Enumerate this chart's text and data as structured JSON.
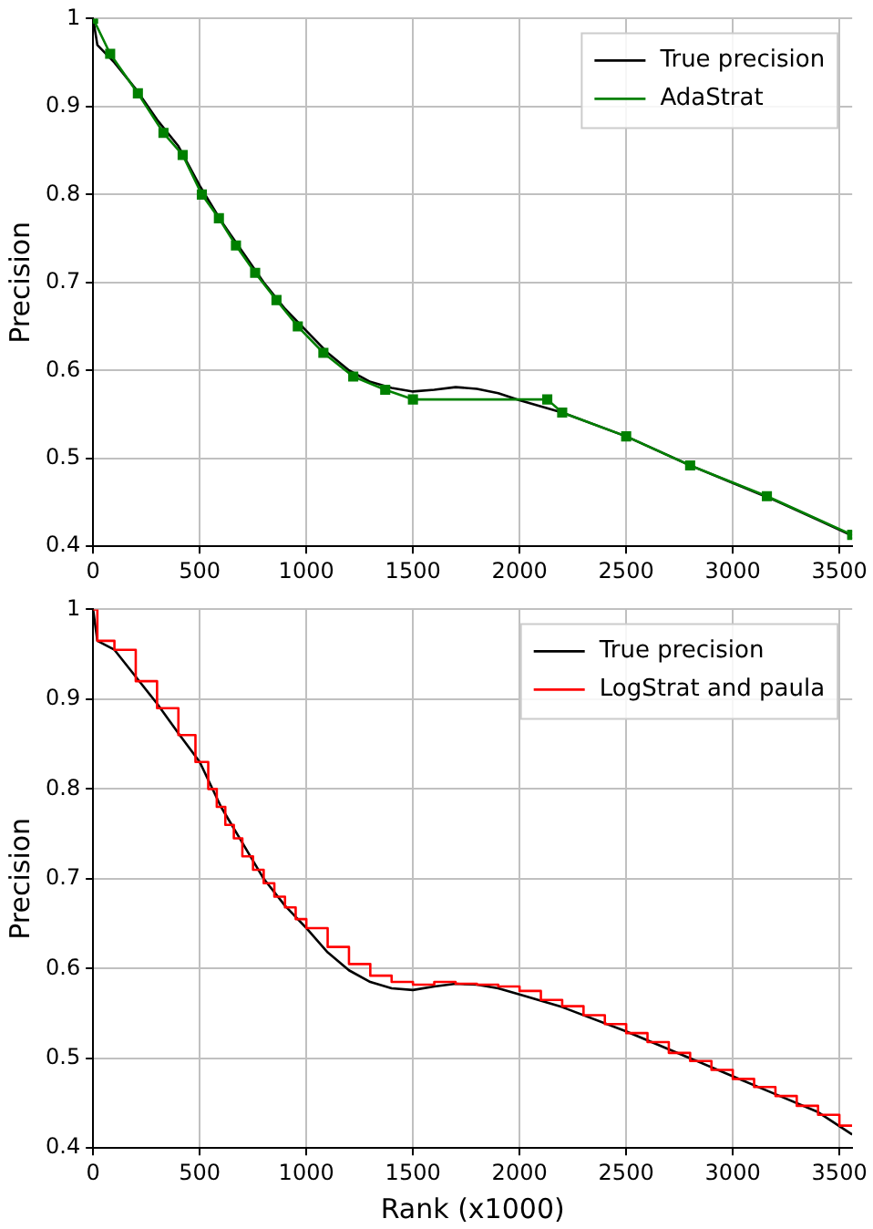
{
  "chart_data": [
    {
      "type": "line",
      "ylabel": "Precision",
      "xlim": [
        0,
        3560
      ],
      "ylim": [
        0.4,
        1.0
      ],
      "xticks": [
        0,
        500,
        1000,
        1500,
        2000,
        2500,
        3000,
        3500
      ],
      "yticks": [
        0.4,
        0.5,
        0.6,
        0.7,
        0.8,
        0.9,
        1.0
      ],
      "grid": true,
      "legend": "top right",
      "series": [
        {
          "name": "True precision",
          "type": "line",
          "color": "#000000",
          "x": [
            0,
            20,
            100,
            200,
            300,
            400,
            500,
            600,
            700,
            800,
            900,
            1000,
            1100,
            1200,
            1300,
            1400,
            1500,
            1600,
            1700,
            1800,
            1900,
            2000,
            2100,
            2200,
            2500,
            2800,
            3000,
            3200,
            3400,
            3560
          ],
          "values": [
            1.0,
            0.97,
            0.95,
            0.92,
            0.885,
            0.855,
            0.81,
            0.77,
            0.735,
            0.7,
            0.67,
            0.645,
            0.62,
            0.6,
            0.587,
            0.58,
            0.576,
            0.578,
            0.581,
            0.579,
            0.574,
            0.566,
            0.559,
            0.552,
            0.525,
            0.492,
            0.472,
            0.452,
            0.43,
            0.412
          ]
        },
        {
          "name": "AdaStrat",
          "type": "line",
          "marker": "square",
          "color": "#008000",
          "x": [
            0,
            80,
            210,
            330,
            420,
            510,
            590,
            670,
            760,
            860,
            960,
            1080,
            1220,
            1370,
            1500,
            2130,
            2200,
            2500,
            2800,
            3160,
            3560
          ],
          "values": [
            1.0,
            0.96,
            0.915,
            0.87,
            0.845,
            0.8,
            0.773,
            0.742,
            0.711,
            0.68,
            0.65,
            0.62,
            0.593,
            0.578,
            0.567,
            0.567,
            0.552,
            0.525,
            0.492,
            0.457,
            0.413
          ]
        }
      ]
    },
    {
      "type": "line",
      "xlabel": "Rank (x1000)",
      "ylabel": "Precision",
      "xlim": [
        0,
        3560
      ],
      "ylim": [
        0.4,
        1.0
      ],
      "xticks": [
        0,
        500,
        1000,
        1500,
        2000,
        2500,
        3000,
        3500
      ],
      "yticks": [
        0.4,
        0.5,
        0.6,
        0.7,
        0.8,
        0.9,
        1.0
      ],
      "grid": true,
      "legend": "top right",
      "series": [
        {
          "name": "True precision",
          "type": "line",
          "color": "#000000",
          "x": [
            0,
            20,
            100,
            200,
            300,
            400,
            500,
            600,
            700,
            800,
            900,
            1000,
            1100,
            1200,
            1300,
            1400,
            1500,
            1600,
            1700,
            1800,
            1900,
            2000,
            2200,
            2500,
            2800,
            3000,
            3200,
            3400,
            3560
          ],
          "values": [
            1.0,
            0.965,
            0.955,
            0.925,
            0.895,
            0.862,
            0.83,
            0.78,
            0.74,
            0.7,
            0.67,
            0.645,
            0.618,
            0.598,
            0.585,
            0.578,
            0.576,
            0.58,
            0.583,
            0.582,
            0.578,
            0.571,
            0.557,
            0.53,
            0.5,
            0.48,
            0.46,
            0.44,
            0.415
          ]
        },
        {
          "name": "LogStrat and paula",
          "type": "step",
          "color": "#ff0000",
          "x": [
            0,
            20,
            100,
            200,
            300,
            400,
            480,
            540,
            580,
            620,
            660,
            700,
            750,
            800,
            850,
            900,
            950,
            1000,
            1100,
            1200,
            1300,
            1400,
            1500,
            1600,
            1700,
            1800,
            1900,
            2000,
            2100,
            2200,
            2300,
            2400,
            2500,
            2600,
            2700,
            2800,
            2900,
            3000,
            3100,
            3200,
            3300,
            3400,
            3500,
            3560
          ],
          "values": [
            1.0,
            0.965,
            0.955,
            0.92,
            0.89,
            0.86,
            0.83,
            0.8,
            0.78,
            0.76,
            0.745,
            0.725,
            0.71,
            0.695,
            0.68,
            0.668,
            0.655,
            0.645,
            0.624,
            0.605,
            0.592,
            0.585,
            0.582,
            0.585,
            0.583,
            0.582,
            0.58,
            0.575,
            0.565,
            0.558,
            0.548,
            0.538,
            0.528,
            0.518,
            0.506,
            0.497,
            0.487,
            0.477,
            0.468,
            0.458,
            0.447,
            0.437,
            0.425,
            0.425
          ]
        }
      ]
    }
  ]
}
